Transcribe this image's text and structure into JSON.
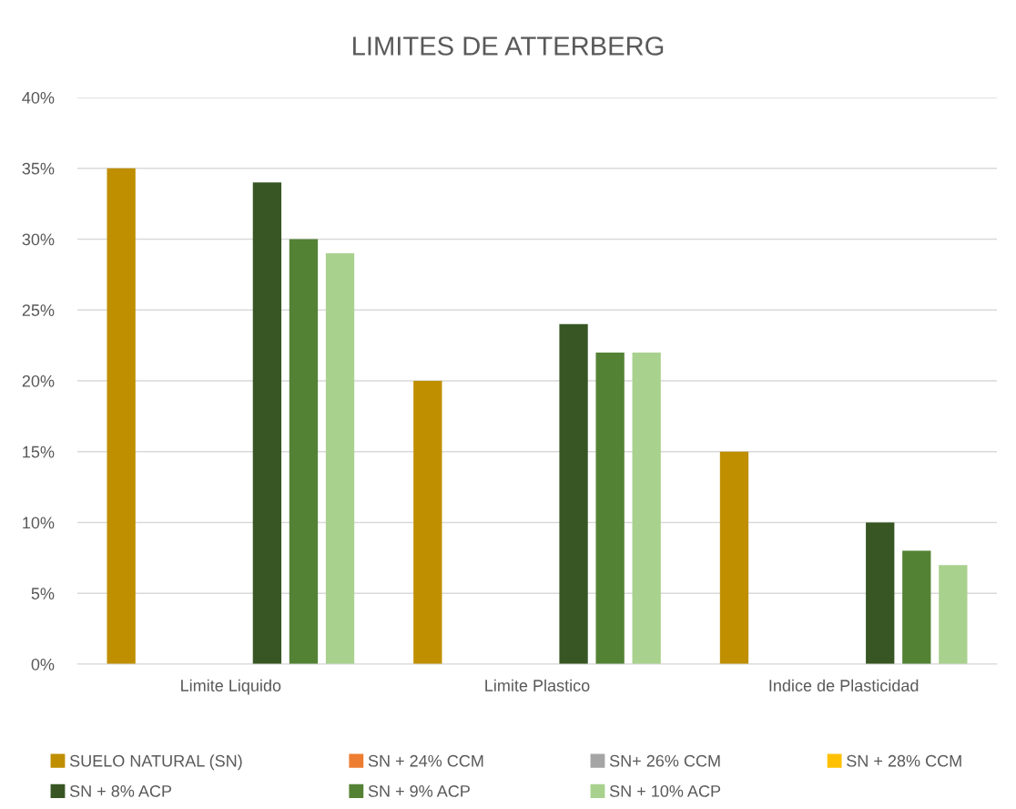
{
  "chart_data": {
    "type": "bar",
    "title": "LIMITES DE ATTERBERG",
    "categories": [
      "Limite Liquido",
      "Limite Plastico",
      "Indice de Plasticidad"
    ],
    "series": [
      {
        "name": "SUELO NATURAL (SN)",
        "color": "#bf8f00",
        "values": [
          35,
          20,
          15
        ]
      },
      {
        "name": "SN + 24% CCM",
        "color": "#ed7d31",
        "values": [
          null,
          null,
          null
        ]
      },
      {
        "name": "SN+ 26% CCM",
        "color": "#a5a5a5",
        "values": [
          null,
          null,
          null
        ]
      },
      {
        "name": "SN + 28% CCM",
        "color": "#ffc000",
        "values": [
          null,
          null,
          null
        ]
      },
      {
        "name": "SN + 8% ACP",
        "color": "#375623",
        "values": [
          34,
          24,
          10
        ]
      },
      {
        "name": "SN + 9% ACP",
        "color": "#548235",
        "values": [
          30,
          22,
          8
        ]
      },
      {
        "name": "SN + 10% ACP",
        "color": "#a9d18e",
        "values": [
          29,
          22,
          7
        ]
      }
    ],
    "ylim": [
      0,
      40
    ],
    "yticks": [
      {
        "value": 0,
        "label": "0%"
      },
      {
        "value": 5,
        "label": "5%"
      },
      {
        "value": 10,
        "label": "10%"
      },
      {
        "value": 15,
        "label": "15%"
      },
      {
        "value": 20,
        "label": "20%"
      },
      {
        "value": 25,
        "label": "25%"
      },
      {
        "value": 30,
        "label": "30%"
      },
      {
        "value": 35,
        "label": "35%"
      },
      {
        "value": 40,
        "label": "40%"
      }
    ],
    "grid": "y",
    "legend": "bottom"
  }
}
